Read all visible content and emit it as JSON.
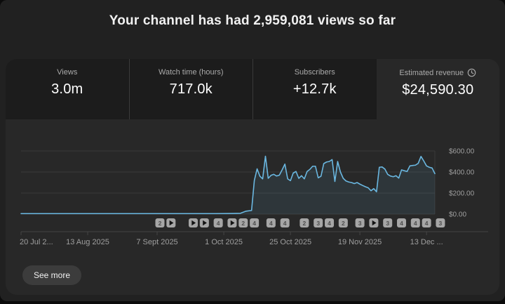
{
  "header": {
    "title": "Your channel has had 2,959,081 views so far"
  },
  "metrics": [
    {
      "label": "Views",
      "value": "3.0m",
      "selected": false
    },
    {
      "label": "Watch time (hours)",
      "value": "717.0k",
      "selected": false
    },
    {
      "label": "Subscribers",
      "value": "+12.7k",
      "selected": false
    },
    {
      "label": "Estimated revenue",
      "value": "$24,590.30",
      "selected": true,
      "icon": "clock-icon"
    }
  ],
  "footer": {
    "see_more_label": "See more"
  },
  "colors": {
    "page_bg": "#212121",
    "panel_bg": "#282828",
    "tab_bg": "#1c1c1c",
    "line": "#6ab7e0",
    "area_fill": "rgba(106,183,224,0.10)",
    "grid": "#3a3a3a",
    "axis": "#454545",
    "tick_text": "#9f9f9f",
    "marker_bg": "#a6a6a6",
    "marker_text": "#4d4d4d",
    "marker_play": "#141414"
  },
  "chart_data": {
    "type": "area",
    "title": "Estimated revenue per day",
    "unit": "USD",
    "legend": "none",
    "grid": "horizontal",
    "x_axis": {
      "labels": [
        "20 Jul 2...",
        "13 Aug 2025",
        "7 Sept 2025",
        "1 Oct 2025",
        "25 Oct 2025",
        "19 Nov 2025",
        "13 Dec ..."
      ],
      "label_positions_day": [
        0,
        24,
        49,
        73,
        97,
        122,
        146
      ],
      "range_days": [
        0,
        149
      ]
    },
    "y_axis": {
      "labels": [
        "$600.00",
        "$400.00",
        "$200.00",
        "$0.00"
      ],
      "ticks": [
        600,
        400,
        200,
        0
      ],
      "range": [
        0,
        600
      ],
      "position": "right"
    },
    "points_format": "[day_index_from_20_Jul_2025, usd]",
    "points": [
      [
        0,
        5
      ],
      [
        10,
        5
      ],
      [
        20,
        5
      ],
      [
        30,
        5
      ],
      [
        40,
        5
      ],
      [
        50,
        5
      ],
      [
        60,
        5
      ],
      [
        70,
        5
      ],
      [
        76,
        6
      ],
      [
        79,
        8
      ],
      [
        81,
        28
      ],
      [
        83,
        35
      ],
      [
        84,
        320
      ],
      [
        85,
        430
      ],
      [
        86,
        360
      ],
      [
        87,
        335
      ],
      [
        88,
        550
      ],
      [
        89,
        340
      ],
      [
        90,
        368
      ],
      [
        91,
        378
      ],
      [
        92,
        362
      ],
      [
        93,
        370
      ],
      [
        94,
        420
      ],
      [
        95,
        475
      ],
      [
        96,
        335
      ],
      [
        97,
        318
      ],
      [
        98,
        390
      ],
      [
        99,
        405
      ],
      [
        100,
        340
      ],
      [
        101,
        365
      ],
      [
        102,
        335
      ],
      [
        103,
        405
      ],
      [
        104,
        425
      ],
      [
        105,
        455
      ],
      [
        106,
        455
      ],
      [
        107,
        345
      ],
      [
        108,
        360
      ],
      [
        109,
        480
      ],
      [
        110,
        495
      ],
      [
        111,
        500
      ],
      [
        112,
        518
      ],
      [
        113,
        310
      ],
      [
        114,
        500
      ],
      [
        115,
        400
      ],
      [
        116,
        340
      ],
      [
        117,
        315
      ],
      [
        118,
        305
      ],
      [
        119,
        300
      ],
      [
        120,
        290
      ],
      [
        121,
        300
      ],
      [
        122,
        285
      ],
      [
        123,
        272
      ],
      [
        124,
        260
      ],
      [
        125,
        250
      ],
      [
        126,
        222
      ],
      [
        127,
        242
      ],
      [
        128,
        212
      ],
      [
        129,
        445
      ],
      [
        130,
        448
      ],
      [
        131,
        428
      ],
      [
        132,
        378
      ],
      [
        133,
        362
      ],
      [
        134,
        355
      ],
      [
        135,
        365
      ],
      [
        136,
        342
      ],
      [
        137,
        420
      ],
      [
        138,
        412
      ],
      [
        139,
        405
      ],
      [
        140,
        458
      ],
      [
        141,
        462
      ],
      [
        142,
        465
      ],
      [
        143,
        482
      ],
      [
        144,
        548
      ],
      [
        145,
        505
      ],
      [
        146,
        458
      ],
      [
        147,
        445
      ],
      [
        148,
        438
      ],
      [
        149,
        385
      ]
    ],
    "video_markers": {
      "description": "video publish badges along x axis; glyph is video count or play icon",
      "days": [
        50,
        54,
        62,
        66,
        71,
        76,
        80,
        84,
        90,
        95,
        102,
        107,
        111,
        116,
        122,
        127,
        132,
        137,
        142,
        146,
        151
      ],
      "glyphs": [
        "2",
        "play",
        "play",
        "play",
        "4",
        "play",
        "2",
        "4",
        "4",
        "4",
        "2",
        "3",
        "4",
        "2",
        "3",
        "play",
        "3",
        "4",
        "4",
        "4",
        "3"
      ]
    }
  }
}
